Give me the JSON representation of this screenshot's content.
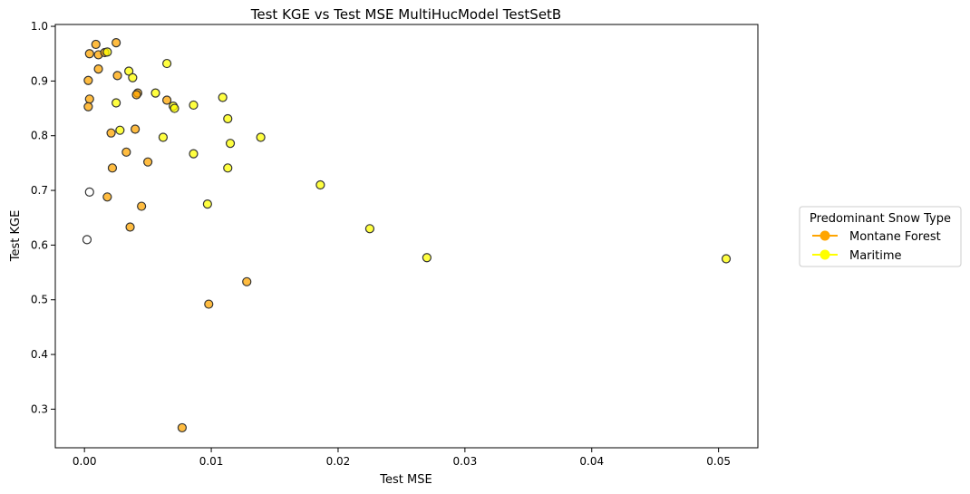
{
  "chart_data": {
    "type": "scatter",
    "title": "Test KGE vs Test MSE MultiHucModel TestSetB",
    "xlabel": "Test MSE",
    "ylabel": "Test KGE",
    "xlim": [
      -0.0023,
      0.0531
    ],
    "ylim": [
      0.2294,
      1.0034
    ],
    "xticks": [
      0.0,
      0.01,
      0.02,
      0.03,
      0.04,
      0.05
    ],
    "xtick_labels": [
      "0.00",
      "0.01",
      "0.02",
      "0.03",
      "0.04",
      "0.05"
    ],
    "yticks": [
      0.3,
      0.4,
      0.5,
      0.6,
      0.7,
      0.8,
      0.9,
      1.0
    ],
    "ytick_labels": [
      "0.3",
      "0.4",
      "0.5",
      "0.6",
      "0.7",
      "0.8",
      "0.9",
      "1.0"
    ],
    "grid": false,
    "legend": {
      "title": "Predominant Snow Type",
      "placement": "outside-right",
      "entries": [
        {
          "label": "Montane Forest",
          "color": "#FFA500"
        },
        {
          "label": "Maritime",
          "color": "#FFFF00"
        }
      ]
    },
    "series": [
      {
        "name": "Montane Forest",
        "color": "#FFA500",
        "points": [
          [
            0.0009,
            0.967
          ],
          [
            0.0025,
            0.97
          ],
          [
            0.0004,
            0.95
          ],
          [
            0.0011,
            0.948
          ],
          [
            0.0016,
            0.952
          ],
          [
            0.0011,
            0.922
          ],
          [
            0.0003,
            0.901
          ],
          [
            0.0026,
            0.91
          ],
          [
            0.0004,
            0.867
          ],
          [
            0.0003,
            0.853
          ],
          [
            0.0042,
            0.878
          ],
          [
            0.0041,
            0.875
          ],
          [
            0.0065,
            0.865
          ],
          [
            0.004,
            0.812
          ],
          [
            0.0021,
            0.805
          ],
          [
            0.0033,
            0.77
          ],
          [
            0.005,
            0.752
          ],
          [
            0.0022,
            0.741
          ],
          [
            0.0018,
            0.688
          ],
          [
            0.0045,
            0.671
          ],
          [
            0.0036,
            0.633
          ],
          [
            0.0128,
            0.533
          ],
          [
            0.0098,
            0.492
          ],
          [
            0.0077,
            0.266
          ]
        ]
      },
      {
        "name": "Maritime",
        "color": "#FFFF00",
        "points": [
          [
            0.0018,
            0.953
          ],
          [
            0.0065,
            0.932
          ],
          [
            0.0035,
            0.918
          ],
          [
            0.0038,
            0.906
          ],
          [
            0.0056,
            0.878
          ],
          [
            0.0109,
            0.87
          ],
          [
            0.0025,
            0.86
          ],
          [
            0.007,
            0.854
          ],
          [
            0.0086,
            0.856
          ],
          [
            0.0071,
            0.85
          ],
          [
            0.0113,
            0.831
          ],
          [
            0.0028,
            0.81
          ],
          [
            0.0062,
            0.797
          ],
          [
            0.0139,
            0.797
          ],
          [
            0.0115,
            0.786
          ],
          [
            0.0086,
            0.767
          ],
          [
            0.0113,
            0.741
          ],
          [
            0.0186,
            0.71
          ],
          [
            0.0097,
            0.675
          ],
          [
            0.0225,
            0.63
          ],
          [
            0.027,
            0.577
          ],
          [
            0.0506,
            0.575
          ]
        ]
      },
      {
        "color": "#FFFFFF",
        "points": [
          [
            0.0004,
            0.697
          ],
          [
            0.0002,
            0.61
          ]
        ]
      }
    ]
  }
}
